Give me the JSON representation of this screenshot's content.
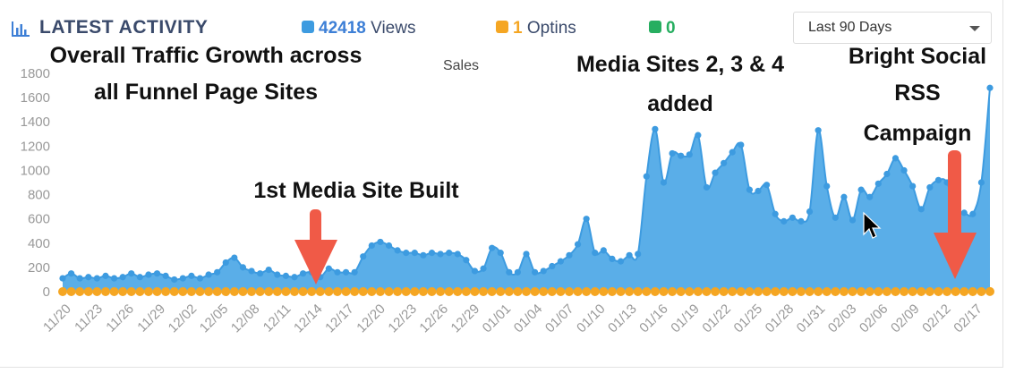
{
  "header": {
    "title": "LATEST ACTIVITY",
    "views_value": "42418",
    "views_label": "Views",
    "optins_value": "1",
    "optins_label": "Optins",
    "third_value": "0",
    "range_selected": "Last 90 Days"
  },
  "colors": {
    "views": "#3d9be0",
    "optins": "#f5a623",
    "third": "#27ae60",
    "area_fill": "#5aaee8",
    "arrow": "#f05a47"
  },
  "annotations": {
    "overall_line1": "Overall Traffic Growth across",
    "overall_line2": "all Funnel Page Sites",
    "first_site": "1st Media Site Built",
    "media_line1": "Media Sites 2, 3 & 4",
    "media_line2": "added",
    "bright_line1": "Bright Social",
    "bright_line2": "RSS",
    "bright_line3": "Campaign"
  },
  "chart_data": {
    "type": "area",
    "title": "Sales",
    "ylim": [
      0,
      1800
    ],
    "yticks": [
      0,
      200,
      400,
      600,
      800,
      1000,
      1200,
      1400,
      1600,
      1800
    ],
    "grid": false,
    "xtick_labels": [
      "11/20",
      "11/23",
      "11/26",
      "11/29",
      "12/02",
      "12/05",
      "12/08",
      "12/11",
      "12/14",
      "12/17",
      "12/20",
      "12/23",
      "12/26",
      "12/29",
      "01/01",
      "01/04",
      "01/07",
      "01/10",
      "01/13",
      "01/16",
      "01/19",
      "01/22",
      "01/25",
      "01/28",
      "01/31",
      "02/03",
      "02/06",
      "02/09",
      "02/12",
      "02/17"
    ],
    "series": [
      {
        "name": "Views",
        "values": [
          110,
          150,
          110,
          120,
          110,
          130,
          110,
          120,
          150,
          120,
          140,
          150,
          130,
          100,
          110,
          130,
          110,
          140,
          160,
          240,
          280,
          200,
          170,
          150,
          180,
          140,
          130,
          120,
          150,
          160,
          120,
          190,
          160,
          160,
          160,
          290,
          380,
          410,
          380,
          340,
          320,
          320,
          300,
          320,
          310,
          320,
          310,
          260,
          170,
          190,
          360,
          320,
          160,
          160,
          310,
          160,
          170,
          210,
          250,
          300,
          390,
          600,
          320,
          340,
          270,
          250,
          300,
          310,
          950,
          1340,
          900,
          1140,
          1120,
          1130,
          1290,
          860,
          980,
          1060,
          1150,
          1210,
          840,
          830,
          880,
          640,
          580,
          610,
          580,
          660,
          1330,
          870,
          610,
          780,
          590,
          840,
          780,
          890,
          970,
          1100,
          1000,
          870,
          680,
          860,
          920,
          900,
          660,
          650,
          640,
          900,
          1680
        ]
      },
      {
        "name": "Optins",
        "values": [
          0,
          0,
          0,
          0,
          0,
          0,
          0,
          0,
          0,
          0,
          0,
          0,
          0,
          0,
          0,
          0,
          0,
          0,
          0,
          0,
          0,
          0,
          0,
          0,
          0,
          0,
          0,
          0,
          0,
          0,
          0,
          0,
          0,
          0,
          0,
          0,
          0,
          0,
          0,
          0,
          0,
          0,
          0,
          0,
          0,
          0,
          0,
          0,
          0,
          0,
          0,
          0,
          0,
          0,
          0,
          0,
          0,
          0,
          0,
          0,
          0,
          0,
          0,
          0,
          0,
          0,
          0,
          0,
          0,
          0,
          0,
          0,
          0,
          0,
          0,
          0,
          0,
          0,
          0,
          0,
          0,
          0,
          0,
          0,
          0,
          0,
          0,
          0,
          0,
          0,
          0,
          0,
          0,
          0,
          0,
          0,
          0,
          0,
          0,
          0,
          0,
          0,
          0,
          0,
          0,
          0,
          0,
          0,
          1
        ]
      }
    ]
  }
}
